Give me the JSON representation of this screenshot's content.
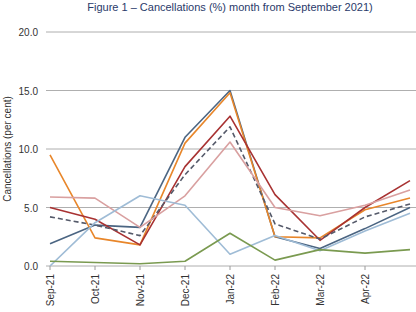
{
  "chart_data": {
    "type": "line",
    "title": "Figure 1 – Cancellations (%) month from September 2021)",
    "y_label": "Cancellations (per cent)",
    "categories": [
      "Sep-21",
      "Oct-21",
      "Nov-21",
      "Dec-21",
      "Jan-22",
      "Feb-22",
      "Mar-22",
      "Apr-22",
      null
    ],
    "series": [
      {
        "color": "#4b6582",
        "values": [
          1.9,
          3.5,
          3.3,
          11.0,
          15.0,
          2.5,
          1.5,
          3.2,
          5.0
        ]
      },
      {
        "color": "#e8862a",
        "values": [
          9.5,
          2.4,
          1.8,
          10.5,
          14.8,
          2.5,
          2.4,
          4.8,
          5.8
        ]
      },
      {
        "color": "#a83232",
        "values": [
          5.0,
          4.0,
          1.8,
          8.5,
          12.8,
          6.1,
          2.2,
          5.0,
          7.3
        ]
      },
      {
        "color": "#555a6a",
        "line_style": "dashed",
        "values": [
          4.2,
          3.5,
          2.6,
          7.8,
          11.9,
          3.6,
          2.3,
          4.2,
          5.3
        ]
      },
      {
        "color": "#d9a0a0",
        "values": [
          5.9,
          5.8,
          3.3,
          6.0,
          10.6,
          5.0,
          4.3,
          5.2,
          6.5
        ]
      },
      {
        "color": "#9fbcd6",
        "values": [
          0.0,
          3.7,
          6.0,
          5.2,
          1.0,
          2.6,
          1.3,
          3.0,
          4.5
        ]
      },
      {
        "color": "#7a9a50",
        "values": [
          0.4,
          0.3,
          0.2,
          0.4,
          2.8,
          0.5,
          1.4,
          1.1,
          1.4
        ]
      }
    ],
    "ylim": [
      0,
      20
    ],
    "yticks": [
      {
        "value": 0,
        "label": "0.0"
      },
      {
        "value": 5,
        "label": "5.0"
      },
      {
        "value": 10,
        "label": "10.0"
      },
      {
        "value": 15,
        "label": "15.0"
      },
      {
        "value": 20,
        "label": "20.0"
      }
    ],
    "grid": true
  }
}
